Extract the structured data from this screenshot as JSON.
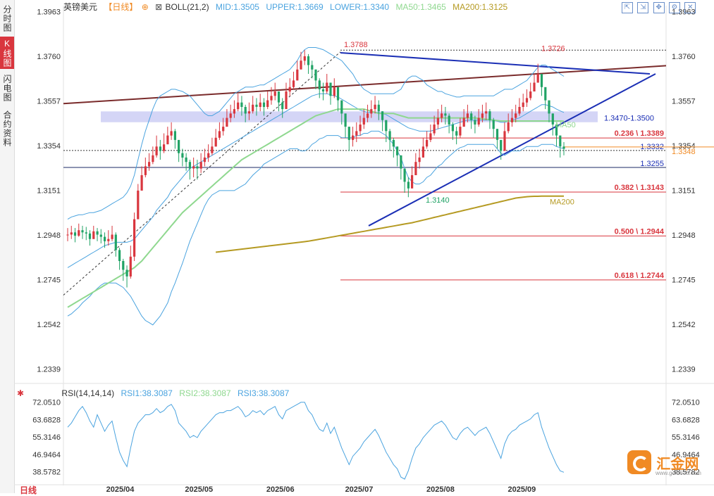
{
  "sidebar": {
    "tabs": [
      {
        "label": "分时图",
        "active": false
      },
      {
        "label": "K线图",
        "active": true
      },
      {
        "label": "闪电图",
        "active": false
      },
      {
        "label": "合约资料",
        "active": false
      }
    ]
  },
  "header": {
    "symbol": "英镑美元",
    "period": "【日线】",
    "indicator": "BOLL(21,2)",
    "mid": "MID:1.3505",
    "upper": "UPPER:1.3669",
    "lower": "LOWER:1.3340",
    "ma50": "MA50:1.3465",
    "ma200": "MA200:1.3125"
  },
  "rsi_header": {
    "name": "RSI(14,14,14)",
    "rsi1": "RSI1:38.3087",
    "rsi2": "RSI2:38.3087",
    "rsi3": "RSI3:38.3087"
  },
  "toolbar": [
    "expand-icon",
    "shrink-icon",
    "move-icon",
    "settings-icon",
    "close-icon"
  ],
  "bottom_label": "日线",
  "logo": {
    "text": "汇金网",
    "url": "www.gold678.com"
  },
  "colors": {
    "up": "#d9363e",
    "down": "#21a366",
    "boll": "#4aa3df",
    "ma50": "#8fd88f",
    "ma200": "#b59a22",
    "trend": "#1b2fb5",
    "channel": "#7a2b2b",
    "fib": "#d9363e",
    "rsi": "#4aa3df",
    "zone": "#c9cbf4"
  },
  "chart_data": {
    "type": "candlestick",
    "symbol": "英镑美元",
    "ylim": [
      1.229,
      1.399
    ],
    "y_ticks": [
      "1.3963",
      "1.3760",
      "1.3557",
      "1.3354",
      "1.3151",
      "1.2948",
      "1.2745",
      "1.2542",
      "1.2339"
    ],
    "x_ticks": [
      "2025/04",
      "2025/05",
      "2025/06",
      "2025/07",
      "2025/08",
      "2025/09"
    ],
    "first_date": "2025-03-12",
    "last_date": "2025-09-17",
    "closes": [
      1.295,
      1.296,
      1.2945,
      1.297,
      1.296,
      1.2955,
      1.293,
      1.2965,
      1.295,
      1.294,
      1.292,
      1.293,
      1.295,
      1.288,
      1.283,
      1.279,
      1.276,
      1.285,
      1.302,
      1.315,
      1.322,
      1.326,
      1.328,
      1.331,
      1.335,
      1.333,
      1.336,
      1.34,
      1.342,
      1.338,
      1.332,
      1.33,
      1.328,
      1.325,
      1.326,
      1.325,
      1.328,
      1.33,
      1.332,
      1.335,
      1.339,
      1.342,
      1.344,
      1.348,
      1.35,
      1.352,
      1.355,
      1.353,
      1.35,
      1.351,
      1.354,
      1.353,
      1.355,
      1.353,
      1.356,
      1.358,
      1.36,
      1.355,
      1.352,
      1.36,
      1.362,
      1.365,
      1.37,
      1.374,
      1.376,
      1.372,
      1.37,
      1.365,
      1.361,
      1.36,
      1.364,
      1.358,
      1.362,
      1.356,
      1.35,
      1.344,
      1.338,
      1.34,
      1.342,
      1.345,
      1.348,
      1.35,
      1.352,
      1.354,
      1.351,
      1.347,
      1.342,
      1.338,
      1.335,
      1.331,
      1.325,
      1.319,
      1.316,
      1.322,
      1.328,
      1.33,
      1.335,
      1.338,
      1.341,
      1.345,
      1.348,
      1.35,
      1.349,
      1.345,
      1.342,
      1.34,
      1.344,
      1.348,
      1.35,
      1.347,
      1.345,
      1.348,
      1.35,
      1.351,
      1.347,
      1.343,
      1.338,
      1.333,
      1.342,
      1.346,
      1.348,
      1.35,
      1.353,
      1.355,
      1.357,
      1.36,
      1.364,
      1.368,
      1.362,
      1.356,
      1.35,
      1.345,
      1.34,
      1.335,
      1.334
    ],
    "highs": [
      1.298,
      1.299,
      1.298,
      1.3,
      1.299,
      1.2985,
      1.297,
      1.299,
      1.298,
      1.2975,
      1.296,
      1.297,
      1.299,
      1.296,
      1.289,
      1.284,
      1.281,
      1.29,
      1.305,
      1.318,
      1.326,
      1.33,
      1.332,
      1.335,
      1.34,
      1.338,
      1.341,
      1.344,
      1.346,
      1.343,
      1.337,
      1.334,
      1.332,
      1.329,
      1.33,
      1.329,
      1.332,
      1.334,
      1.336,
      1.339,
      1.343,
      1.346,
      1.348,
      1.352,
      1.354,
      1.356,
      1.359,
      1.358,
      1.354,
      1.355,
      1.358,
      1.357,
      1.359,
      1.357,
      1.36,
      1.362,
      1.364,
      1.36,
      1.357,
      1.364,
      1.366,
      1.369,
      1.374,
      1.378,
      1.3788,
      1.377,
      1.374,
      1.37,
      1.366,
      1.364,
      1.368,
      1.363,
      1.366,
      1.361,
      1.355,
      1.349,
      1.343,
      1.344,
      1.346,
      1.349,
      1.352,
      1.354,
      1.356,
      1.358,
      1.356,
      1.351,
      1.347,
      1.343,
      1.339,
      1.335,
      1.33,
      1.324,
      1.321,
      1.326,
      1.332,
      1.334,
      1.339,
      1.342,
      1.345,
      1.349,
      1.352,
      1.354,
      1.353,
      1.35,
      1.346,
      1.344,
      1.348,
      1.352,
      1.354,
      1.351,
      1.349,
      1.352,
      1.354,
      1.355,
      1.352,
      1.348,
      1.343,
      1.338,
      1.346,
      1.35,
      1.352,
      1.354,
      1.357,
      1.359,
      1.361,
      1.364,
      1.368,
      1.3726,
      1.368,
      1.361,
      1.355,
      1.35,
      1.345,
      1.34,
      1.337
    ],
    "lows": [
      1.292,
      1.293,
      1.2915,
      1.294,
      1.293,
      1.2925,
      1.29,
      1.2935,
      1.292,
      1.291,
      1.289,
      1.29,
      1.292,
      1.285,
      1.279,
      1.274,
      1.271,
      1.275,
      1.283,
      1.302,
      1.315,
      1.321,
      1.324,
      1.327,
      1.33,
      1.329,
      1.332,
      1.336,
      1.338,
      1.334,
      1.328,
      1.326,
      1.324,
      1.32,
      1.321,
      1.32,
      1.323,
      1.326,
      1.328,
      1.331,
      1.335,
      1.338,
      1.34,
      1.344,
      1.346,
      1.348,
      1.351,
      1.349,
      1.346,
      1.347,
      1.35,
      1.349,
      1.351,
      1.349,
      1.352,
      1.354,
      1.356,
      1.351,
      1.348,
      1.355,
      1.358,
      1.361,
      1.365,
      1.37,
      1.372,
      1.368,
      1.366,
      1.361,
      1.357,
      1.356,
      1.359,
      1.354,
      1.357,
      1.351,
      1.345,
      1.339,
      1.333,
      1.335,
      1.337,
      1.34,
      1.343,
      1.346,
      1.348,
      1.35,
      1.347,
      1.342,
      1.337,
      1.333,
      1.33,
      1.326,
      1.32,
      1.314,
      1.312,
      1.316,
      1.323,
      1.325,
      1.33,
      1.334,
      1.337,
      1.34,
      1.343,
      1.346,
      1.345,
      1.341,
      1.338,
      1.336,
      1.339,
      1.344,
      1.346,
      1.343,
      1.341,
      1.344,
      1.346,
      1.347,
      1.343,
      1.339,
      1.334,
      1.329,
      1.334,
      1.341,
      1.344,
      1.346,
      1.349,
      1.351,
      1.353,
      1.356,
      1.36,
      1.364,
      1.358,
      1.352,
      1.346,
      1.34,
      1.335,
      1.33,
      1.331
    ],
    "boll_upper": [
      1.302,
      1.303,
      1.3035,
      1.304,
      1.304,
      1.3045,
      1.305,
      1.305,
      1.3055,
      1.306,
      1.307,
      1.308,
      1.309,
      1.31,
      1.311,
      1.312,
      1.314,
      1.317,
      1.322,
      1.329,
      1.336,
      1.342,
      1.347,
      1.352,
      1.356,
      1.358,
      1.359,
      1.36,
      1.361,
      1.361,
      1.3605,
      1.36,
      1.359,
      1.358,
      1.356,
      1.354,
      1.352,
      1.35,
      1.349,
      1.349,
      1.35,
      1.351,
      1.353,
      1.355,
      1.357,
      1.359,
      1.36,
      1.361,
      1.362,
      1.362,
      1.362,
      1.3625,
      1.363,
      1.363,
      1.364,
      1.365,
      1.366,
      1.367,
      1.368,
      1.369,
      1.37,
      1.372,
      1.374,
      1.377,
      1.379,
      1.38,
      1.38,
      1.38,
      1.3795,
      1.379,
      1.378,
      1.377,
      1.376,
      1.375,
      1.374,
      1.372,
      1.37,
      1.368,
      1.365,
      1.363,
      1.361,
      1.36,
      1.359,
      1.359,
      1.359,
      1.359,
      1.359,
      1.359,
      1.359,
      1.36,
      1.361,
      1.364,
      1.366,
      1.367,
      1.367,
      1.366,
      1.365,
      1.363,
      1.362,
      1.361,
      1.36,
      1.36,
      1.359,
      1.3585,
      1.358,
      1.3575,
      1.3575,
      1.358,
      1.358,
      1.358,
      1.358,
      1.358,
      1.358,
      1.358,
      1.358,
      1.358,
      1.359,
      1.36,
      1.361,
      1.361,
      1.361,
      1.362,
      1.363,
      1.364,
      1.365,
      1.367,
      1.369,
      1.371,
      1.372,
      1.372,
      1.371,
      1.37,
      1.369,
      1.368,
      1.3669
    ],
    "boll_mid": [
      1.28,
      1.281,
      1.282,
      1.283,
      1.284,
      1.285,
      1.286,
      1.287,
      1.288,
      1.289,
      1.29,
      1.2905,
      1.291,
      1.2915,
      1.2915,
      1.2915,
      1.2915,
      1.292,
      1.293,
      1.295,
      1.297,
      1.299,
      1.301,
      1.303,
      1.306,
      1.308,
      1.31,
      1.312,
      1.315,
      1.317,
      1.319,
      1.321,
      1.323,
      1.325,
      1.326,
      1.327,
      1.328,
      1.329,
      1.33,
      1.331,
      1.332,
      1.333,
      1.334,
      1.335,
      1.336,
      1.337,
      1.338,
      1.339,
      1.34,
      1.341,
      1.342,
      1.343,
      1.344,
      1.345,
      1.346,
      1.347,
      1.348,
      1.349,
      1.35,
      1.351,
      1.352,
      1.353,
      1.354,
      1.355,
      1.356,
      1.357,
      1.358,
      1.3585,
      1.359,
      1.359,
      1.359,
      1.3585,
      1.358,
      1.3575,
      1.3565,
      1.3555,
      1.3545,
      1.3535,
      1.3525,
      1.3515,
      1.351,
      1.3505,
      1.3505,
      1.3505,
      1.3505,
      1.35,
      1.3495,
      1.3485,
      1.3475,
      1.3465,
      1.3455,
      1.3445,
      1.3435,
      1.343,
      1.3425,
      1.342,
      1.342,
      1.342,
      1.342,
      1.3425,
      1.343,
      1.3435,
      1.344,
      1.3445,
      1.345,
      1.3455,
      1.346,
      1.3465,
      1.347,
      1.347,
      1.347,
      1.347,
      1.347,
      1.347,
      1.347,
      1.347,
      1.3465,
      1.346,
      1.346,
      1.3465,
      1.347,
      1.3475,
      1.348,
      1.349,
      1.35,
      1.351,
      1.352,
      1.353,
      1.354,
      1.354,
      1.3535,
      1.353,
      1.352,
      1.3512,
      1.3505
    ],
    "boll_lower": [
      1.258,
      1.259,
      1.2605,
      1.262,
      1.264,
      1.2655,
      1.267,
      1.269,
      1.2705,
      1.272,
      1.273,
      1.273,
      1.273,
      1.273,
      1.272,
      1.271,
      1.269,
      1.267,
      1.264,
      1.261,
      1.258,
      1.256,
      1.255,
      1.254,
      1.256,
      1.258,
      1.261,
      1.264,
      1.269,
      1.273,
      1.2775,
      1.282,
      1.287,
      1.292,
      1.296,
      1.3,
      1.304,
      1.308,
      1.311,
      1.313,
      1.314,
      1.315,
      1.315,
      1.315,
      1.315,
      1.315,
      1.316,
      1.317,
      1.318,
      1.32,
      1.322,
      1.3235,
      1.325,
      1.327,
      1.328,
      1.329,
      1.33,
      1.331,
      1.332,
      1.333,
      1.334,
      1.334,
      1.334,
      1.333,
      1.333,
      1.334,
      1.336,
      1.337,
      1.3385,
      1.339,
      1.34,
      1.34,
      1.34,
      1.34,
      1.339,
      1.339,
      1.339,
      1.339,
      1.34,
      1.34,
      1.341,
      1.341,
      1.342,
      1.342,
      1.342,
      1.341,
      1.34,
      1.338,
      1.336,
      1.333,
      1.33,
      1.325,
      1.321,
      1.319,
      1.318,
      1.318,
      1.319,
      1.321,
      1.322,
      1.324,
      1.326,
      1.327,
      1.329,
      1.3305,
      1.332,
      1.3335,
      1.3345,
      1.335,
      1.336,
      1.336,
      1.336,
      1.336,
      1.336,
      1.336,
      1.336,
      1.336,
      1.334,
      1.332,
      1.331,
      1.332,
      1.333,
      1.333,
      1.333,
      1.334,
      1.335,
      1.335,
      1.335,
      1.335,
      1.336,
      1.336,
      1.336,
      1.336,
      1.335,
      1.3345,
      1.334
    ],
    "ma50": [
      1.262,
      1.263,
      1.264,
      1.265,
      1.266,
      1.267,
      1.268,
      1.269,
      1.27,
      1.271,
      1.272,
      1.273,
      1.274,
      1.275,
      1.276,
      1.277,
      1.278,
      1.279,
      1.28,
      1.2815,
      1.283,
      1.285,
      1.287,
      1.289,
      1.291,
      1.293,
      1.295,
      1.297,
      1.299,
      1.301,
      1.303,
      1.305,
      1.3065,
      1.308,
      1.3095,
      1.311,
      1.3125,
      1.314,
      1.3155,
      1.317,
      1.3185,
      1.32,
      1.3215,
      1.323,
      1.3245,
      1.326,
      1.3275,
      1.329,
      1.33,
      1.331,
      1.332,
      1.333,
      1.334,
      1.335,
      1.336,
      1.337,
      1.338,
      1.339,
      1.34,
      1.341,
      1.342,
      1.343,
      1.344,
      1.345,
      1.346,
      1.347,
      1.348,
      1.349,
      1.3495,
      1.35,
      1.3505,
      1.351,
      1.3515,
      1.352,
      1.352,
      1.352,
      1.352,
      1.352,
      1.352,
      1.352,
      1.352,
      1.3515,
      1.351,
      1.3505,
      1.35,
      1.35,
      1.35,
      1.35,
      1.35,
      1.3495,
      1.349,
      1.3485,
      1.348,
      1.348,
      1.348,
      1.348,
      1.348,
      1.348,
      1.348,
      1.348,
      1.348,
      1.348,
      1.348,
      1.348,
      1.348,
      1.348,
      1.348,
      1.348,
      1.348,
      1.348,
      1.348,
      1.3478,
      1.3476,
      1.3474,
      1.3472,
      1.347,
      1.3468,
      1.3466,
      1.3466,
      1.3466,
      1.3466,
      1.3466,
      1.3466,
      1.3466,
      1.3466,
      1.3466,
      1.3466,
      1.3466,
      1.3466,
      1.3466,
      1.3466,
      1.3466,
      1.3466,
      1.3466,
      1.3465
    ],
    "ma200": [
      null,
      null,
      null,
      null,
      null,
      null,
      null,
      null,
      null,
      null,
      null,
      null,
      null,
      null,
      null,
      null,
      null,
      null,
      null,
      null,
      null,
      null,
      null,
      null,
      null,
      null,
      null,
      null,
      null,
      null,
      null,
      null,
      null,
      null,
      null,
      null,
      null,
      null,
      null,
      null,
      1.287,
      1.2872,
      1.2874,
      1.2876,
      1.2878,
      1.288,
      1.2882,
      1.2884,
      1.2886,
      1.2888,
      1.289,
      1.2892,
      1.2894,
      1.2896,
      1.2898,
      1.29,
      1.2902,
      1.2904,
      1.2906,
      1.2908,
      1.291,
      1.2912,
      1.2914,
      1.2916,
      1.2918,
      1.292,
      1.2923,
      1.2926,
      1.2929,
      1.2932,
      1.2935,
      1.2938,
      1.2941,
      1.2944,
      1.2947,
      1.295,
      1.2953,
      1.2956,
      1.2959,
      1.2962,
      1.2965,
      1.2968,
      1.2971,
      1.2974,
      1.2977,
      1.298,
      1.2983,
      1.2986,
      1.2989,
      1.2992,
      1.2995,
      1.2998,
      1.3001,
      1.3004,
      1.3008,
      1.3012,
      1.3016,
      1.302,
      1.3024,
      1.3028,
      1.3032,
      1.3036,
      1.304,
      1.3044,
      1.3048,
      1.3052,
      1.3056,
      1.306,
      1.3064,
      1.3068,
      1.3072,
      1.3076,
      1.308,
      1.3084,
      1.3088,
      1.3092,
      1.3096,
      1.31,
      1.3104,
      1.3108,
      1.3112,
      1.3116,
      1.3118,
      1.312,
      1.3122,
      1.3123,
      1.3124,
      1.3124,
      1.3125,
      1.3125,
      1.3125,
      1.3125,
      1.3125,
      1.3125,
      1.3125
    ],
    "annotations": {
      "high_label": "1.3788",
      "recent_high_label": "1.3726",
      "low_label": "1.3140",
      "zone_label": "1.3470-1.3500",
      "zone": [
        1.347,
        1.35
      ],
      "level_1332": "1.3332",
      "level_1332_value": 1.3332,
      "level_1325": "1.3255",
      "level_1325_value": 1.3255,
      "current_price": "1.3348",
      "current_price_value": 1.3348,
      "ma50_tag": "MA50",
      "ma200_tag": "MA200",
      "fib_levels": [
        {
          "label": "0.236 \\ 1.3389",
          "value": 1.3389
        },
        {
          "label": "0.382 \\ 1.3143",
          "value": 1.3143
        },
        {
          "label": "0.500 \\ 1.2944",
          "value": 1.2944
        },
        {
          "label": "0.618 \\ 1.2744",
          "value": 1.2744
        }
      ]
    },
    "rsi": {
      "ylim": [
        34,
        76
      ],
      "y_ticks": [
        "72.0510",
        "63.6828",
        "55.3146",
        "46.9464",
        "38.5782"
      ],
      "values": [
        60,
        62,
        65,
        68,
        70,
        67,
        63,
        60,
        66,
        62,
        58,
        61,
        63,
        55,
        48,
        44,
        41,
        50,
        58,
        62,
        64,
        66,
        66,
        67,
        69,
        67,
        68,
        70,
        71,
        68,
        62,
        60,
        58,
        55,
        56,
        55,
        58,
        60,
        62,
        64,
        66,
        67,
        67,
        68,
        68,
        69,
        70,
        68,
        65,
        66,
        68,
        67,
        68,
        66,
        68,
        69,
        70,
        66,
        64,
        68,
        69,
        70,
        71,
        72,
        72,
        68,
        66,
        62,
        59,
        58,
        62,
        57,
        60,
        55,
        50,
        46,
        42,
        46,
        48,
        50,
        53,
        55,
        57,
        59,
        56,
        52,
        48,
        45,
        42,
        40,
        36,
        35,
        39,
        45,
        50,
        52,
        55,
        57,
        59,
        61,
        62,
        63,
        61,
        58,
        55,
        54,
        57,
        59,
        60,
        58,
        56,
        58,
        59,
        60,
        57,
        53,
        49,
        45,
        52,
        56,
        58,
        59,
        61,
        62,
        63,
        64,
        66,
        67,
        60,
        55,
        50,
        46,
        42,
        39,
        38.3087
      ]
    }
  }
}
